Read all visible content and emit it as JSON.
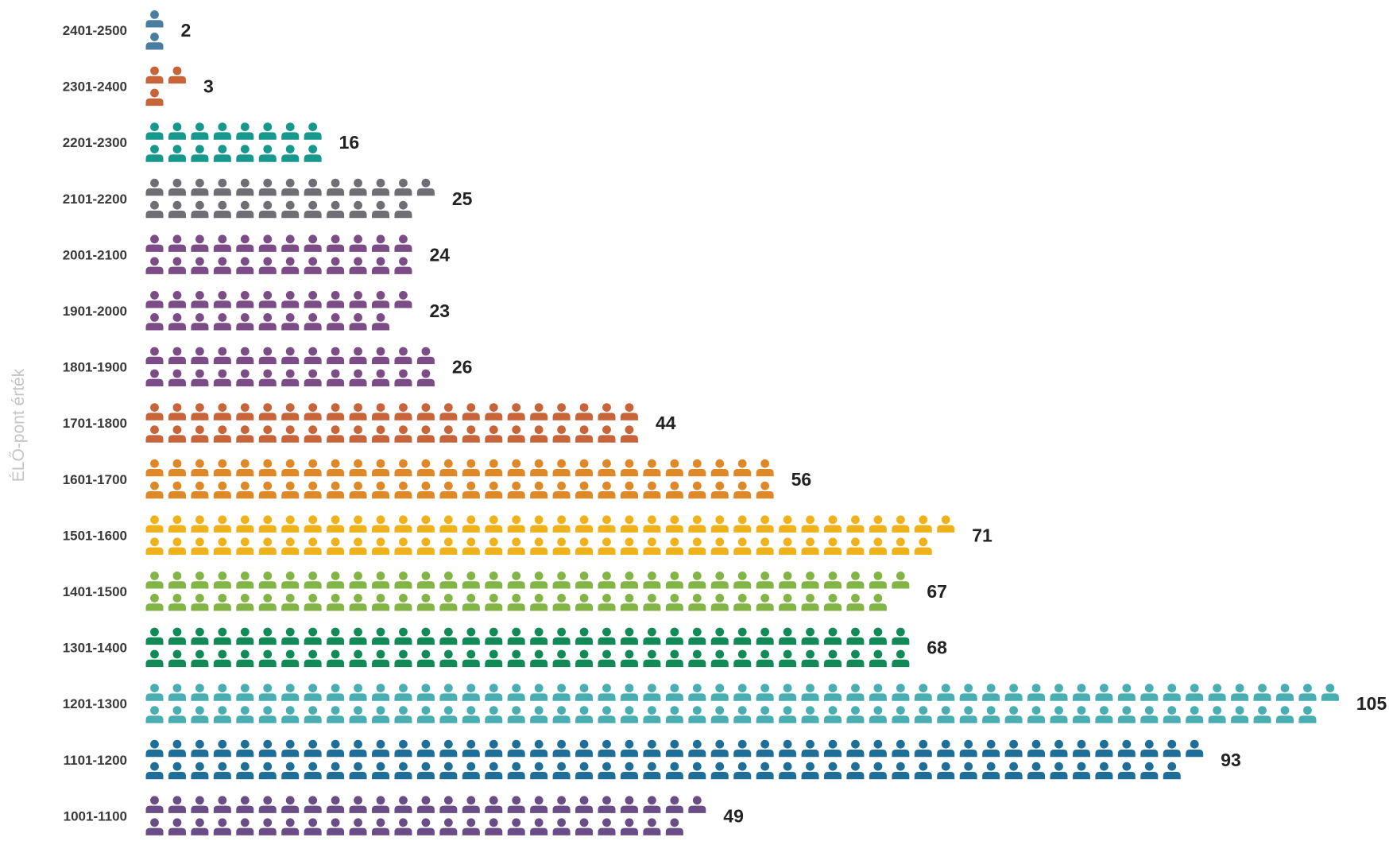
{
  "chart_data": {
    "type": "bar",
    "ylabel": "ÉLŐ-pont érték",
    "unit_icon": "person-icon",
    "categories": [
      "2401-2500",
      "2301-2400",
      "2201-2300",
      "2101-2200",
      "2001-2100",
      "1901-2000",
      "1801-1900",
      "1701-1800",
      "1601-1700",
      "1501-1600",
      "1401-1500",
      "1301-1400",
      "1201-1300",
      "1101-1200",
      "1001-1100"
    ],
    "values": [
      2,
      3,
      16,
      25,
      24,
      23,
      26,
      44,
      56,
      71,
      67,
      68,
      105,
      93,
      49
    ],
    "colors": [
      "#4a7ea0",
      "#c8643a",
      "#17988c",
      "#6e6e74",
      "#7c4c86",
      "#7c4c86",
      "#7c4c86",
      "#c8643a",
      "#de8828",
      "#f0b21a",
      "#82b446",
      "#128a58",
      "#48aeb2",
      "#1e6e98",
      "#6a4c86"
    ]
  }
}
